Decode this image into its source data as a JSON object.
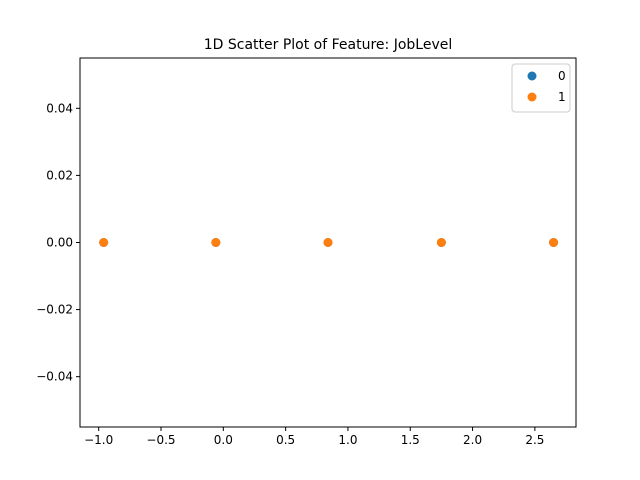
{
  "chart_data": {
    "type": "scatter",
    "title": "1D Scatter Plot of Feature: JobLevel",
    "xlabel": "",
    "ylabel": "",
    "xlim": [
      -1.15,
      2.83
    ],
    "ylim": [
      -0.055,
      0.055
    ],
    "xticks": [
      -1.0,
      -0.5,
      0.0,
      0.5,
      1.0,
      1.5,
      2.0,
      2.5
    ],
    "xtick_labels": [
      "−1.0",
      "−0.5",
      "0.0",
      "0.5",
      "1.0",
      "1.5",
      "2.0",
      "2.5"
    ],
    "yticks": [
      0.04,
      0.02,
      0.0,
      -0.02,
      -0.04
    ],
    "ytick_labels": [
      "0.04",
      "0.02",
      "0.00",
      "−0.02",
      "−0.04"
    ],
    "grid": false,
    "legend_position": "top-right",
    "series": [
      {
        "name": "0",
        "color": "#1f77b4",
        "points": [
          [
            -0.96,
            0
          ],
          [
            -0.06,
            0
          ],
          [
            0.84,
            0
          ],
          [
            1.75,
            0
          ],
          [
            2.65,
            0
          ]
        ]
      },
      {
        "name": "1",
        "color": "#ff7f0e",
        "points": [
          [
            -0.96,
            0
          ],
          [
            -0.06,
            0
          ],
          [
            0.84,
            0
          ],
          [
            1.75,
            0
          ],
          [
            2.65,
            0
          ]
        ]
      }
    ]
  }
}
